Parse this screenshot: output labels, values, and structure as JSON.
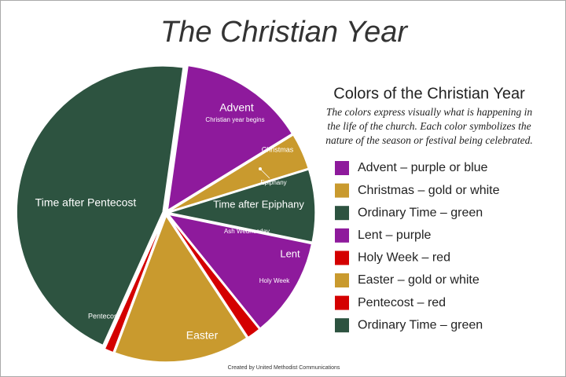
{
  "chart_data": {
    "type": "pie",
    "title": "The Christian Year",
    "categories": [
      "Advent",
      "Christmas",
      "Time after Epiphany",
      "Lent",
      "Holy Week",
      "Easter",
      "Pentecost",
      "Time after Pentecost"
    ],
    "values": [
      14,
      4,
      8,
      11,
      1.5,
      15,
      1,
      45.5
    ],
    "colors": [
      "#8e1a9c",
      "#c99a2e",
      "#2d5340",
      "#8e1a9c",
      "#d40000",
      "#c99a2e",
      "#d40000",
      "#2d5340"
    ],
    "annotations": [
      "Christian year begins",
      "Epiphany",
      "Ash Wednesday"
    ],
    "legend_title": "Colors of the Christian Year",
    "legend_description": [
      "The colors express visually what is happening in",
      "the life of the church. Each color symbolizes the",
      "nature of the season or festival being celebrated."
    ],
    "legend_labels": [
      "Advent – purple or blue",
      "Christmas – gold or white",
      "Ordinary Time – green",
      "Lent – purple",
      "Holy Week – red",
      "Easter – gold or white",
      "Pentecost – red",
      "Ordinary Time – green"
    ],
    "footer": "Created by United Methodist Communications"
  }
}
